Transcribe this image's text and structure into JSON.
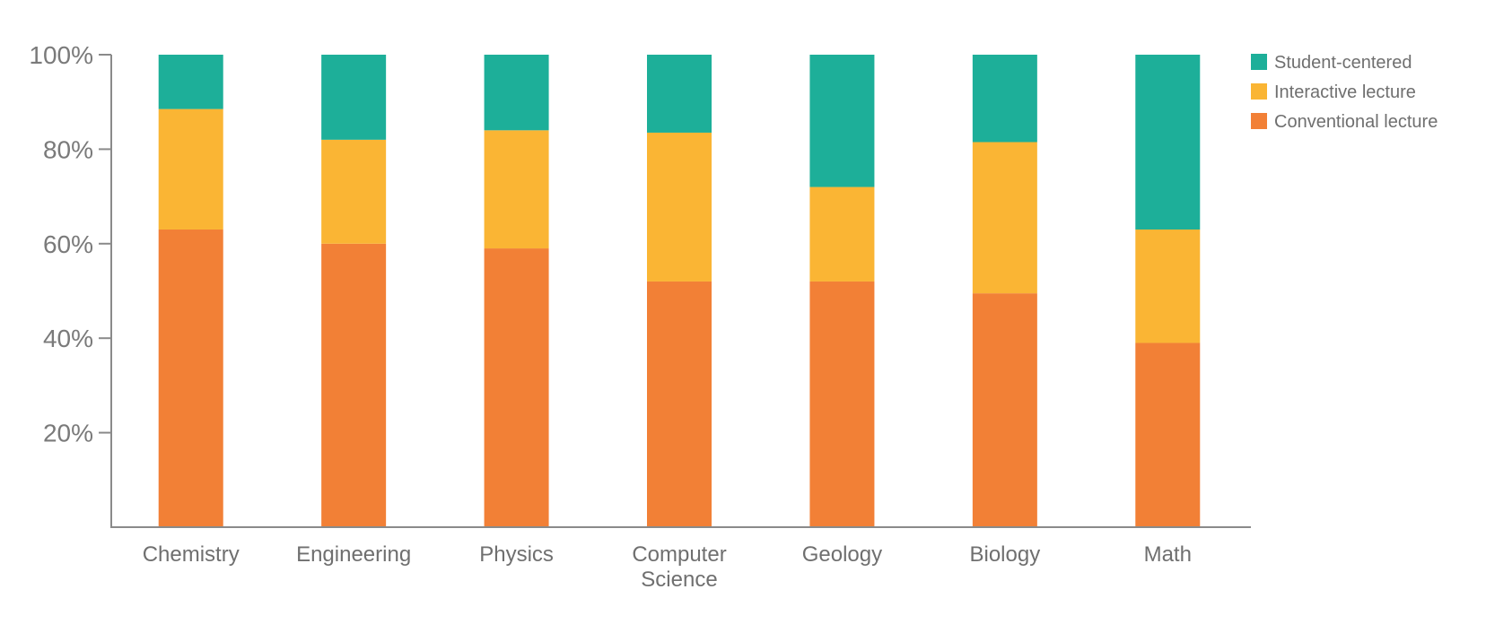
{
  "chart_data": {
    "type": "bar",
    "stacked": true,
    "title": "",
    "xlabel": "",
    "ylabel": "",
    "ylim": [
      0,
      100
    ],
    "yticks": [
      "20%",
      "40%",
      "60%",
      "80%",
      "100%"
    ],
    "ytick_values": [
      20,
      40,
      60,
      80,
      100
    ],
    "categories": [
      "Chemistry",
      "Engineering",
      "Physics",
      "Computer Science",
      "Geology",
      "Biology",
      "Math"
    ],
    "category_lines": [
      [
        "Chemistry"
      ],
      [
        "Engineering"
      ],
      [
        "Physics"
      ],
      [
        "Computer",
        "Science"
      ],
      [
        "Geology"
      ],
      [
        "Biology"
      ],
      [
        "Math"
      ]
    ],
    "series": [
      {
        "name": "Conventional lecture",
        "color": "#f28036",
        "values": [
          63,
          60,
          59,
          52,
          52,
          49.5,
          39
        ]
      },
      {
        "name": "Interactive lecture",
        "color": "#fab534",
        "values": [
          25.5,
          22,
          25,
          31.5,
          20,
          32,
          24
        ]
      },
      {
        "name": "Student-centered",
        "color": "#1daf99",
        "values": [
          11.5,
          18,
          16,
          16.5,
          28,
          18.5,
          37
        ]
      }
    ],
    "legend": {
      "position": "top-right",
      "order": [
        "Student-centered",
        "Interactive lecture",
        "Conventional lecture"
      ]
    },
    "grid": false
  },
  "colors": {
    "axis": "#8a8a8a",
    "text": "#6f6f6f"
  }
}
